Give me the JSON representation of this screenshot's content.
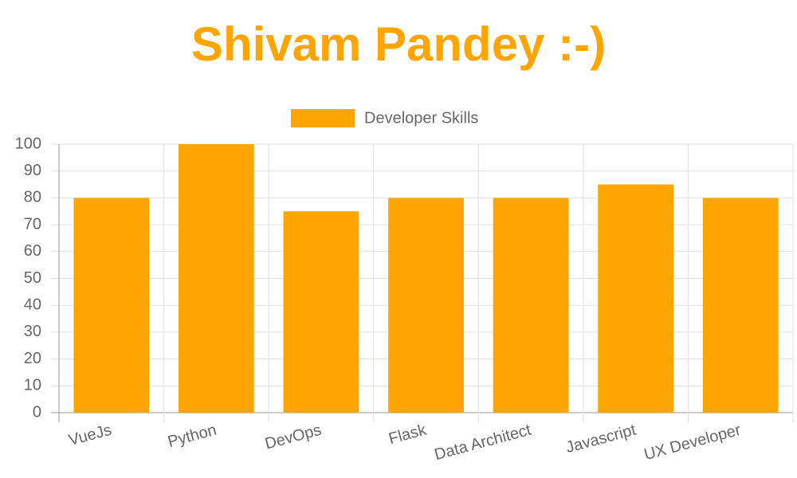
{
  "chart_data": {
    "type": "bar",
    "title": "Shivam Pandey :-)",
    "categories": [
      "VueJs",
      "Python",
      "DevOps",
      "Flask",
      "Data Architect",
      "Javascript",
      "UX Developer"
    ],
    "series": [
      {
        "name": "Developer Skills",
        "color": "#ffa500",
        "values": [
          80,
          100,
          75,
          80,
          80,
          85,
          80
        ]
      }
    ],
    "ylim": [
      0,
      100
    ],
    "yticks": [
      0,
      10,
      20,
      30,
      40,
      50,
      60,
      70,
      80,
      90,
      100
    ],
    "grid": true,
    "legend": "top"
  }
}
